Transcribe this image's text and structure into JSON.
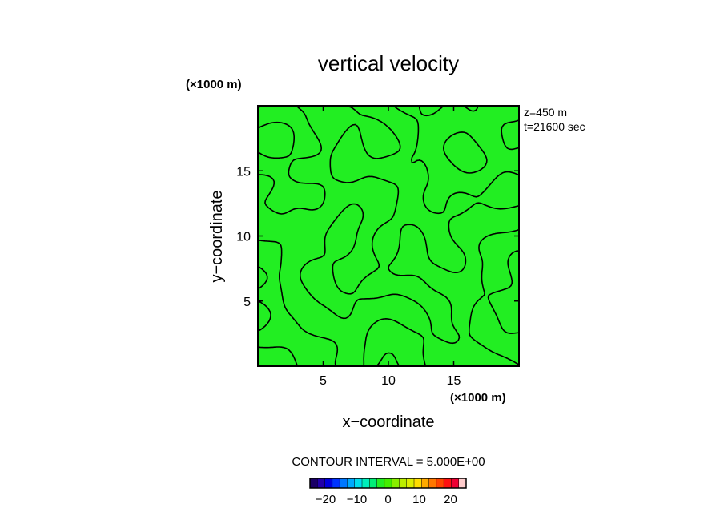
{
  "chart_data": {
    "type": "contour",
    "title": "vertical velocity",
    "xlabel": "x−coordinate",
    "ylabel": "y−coordinate",
    "x_unit": "(×1000 m)",
    "y_unit": "(×1000 m)",
    "xlim": [
      0,
      20
    ],
    "ylim": [
      0,
      20
    ],
    "x_ticks": [
      5,
      10,
      15
    ],
    "y_ticks": [
      5,
      10,
      15
    ],
    "x_tick_labels": [
      "5",
      "10",
      "15"
    ],
    "y_tick_labels": [
      "5",
      "10",
      "15"
    ],
    "annotations": [
      "z=450 m",
      "t=21600 sec"
    ],
    "contour_interval_text": "CONTOUR INTERVAL = 5.000E+00",
    "contour_interval": 5,
    "field_fill_color": "#22ee22",
    "contour_color": "#000000",
    "colorbar": {
      "range": [
        -25,
        25
      ],
      "tick_values": [
        -20,
        -10,
        0,
        10,
        20
      ],
      "tick_labels": [
        "−20",
        "−10",
        "0",
        "10",
        "20"
      ],
      "colors": [
        "#1a0066",
        "#2200aa",
        "#0000dd",
        "#0033ff",
        "#0077ff",
        "#00aaff",
        "#00ddee",
        "#00eebb",
        "#00ee77",
        "#22ee22",
        "#44ee00",
        "#88ee00",
        "#bbee00",
        "#ddee00",
        "#ffdd00",
        "#ffaa00",
        "#ff7700",
        "#ff4400",
        "#ff1111",
        "#ee0033",
        "#ffcccc"
      ]
    }
  }
}
